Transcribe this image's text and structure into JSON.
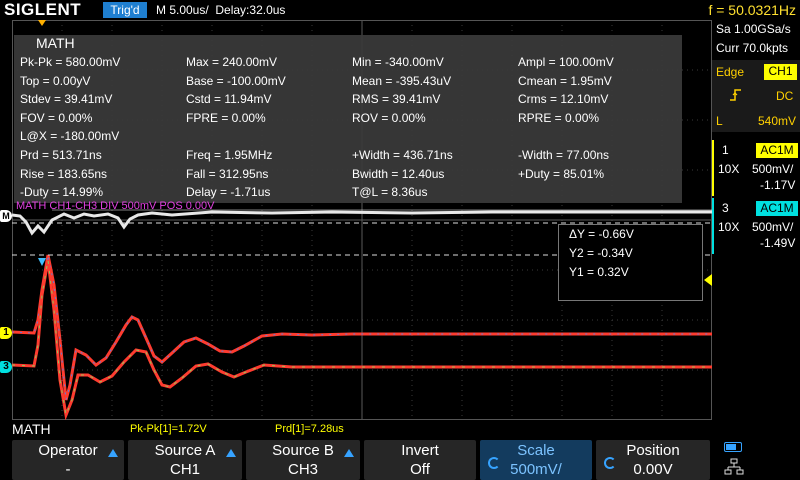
{
  "topbar": {
    "brand": "SIGLENT",
    "trigger_status": "Trig'd",
    "timebase": "M 5.00us/",
    "delay": "Delay:32.0us",
    "frequency": "f = 50.0321Hz"
  },
  "measure": {
    "title": "MATH",
    "rows": [
      [
        "Pk-Pk = 580.00mV",
        "Max = 240.00mV",
        "Min = -340.00mV",
        "Ampl = 100.00mV"
      ],
      [
        "Top = 0.00yV",
        "Base = -100.00mV",
        "Mean = -395.43uV",
        "Cmean = 1.95mV"
      ],
      [
        "Stdev = 39.41mV",
        "Cstd = 11.94mV",
        "RMS = 39.41mV",
        "Crms = 12.10mV"
      ],
      [
        "FOV = 0.00%",
        "FPRE = 0.00%",
        "ROV = 0.00%",
        "RPRE = 0.00%"
      ],
      [
        "L@X = -180.00mV",
        "",
        "",
        ""
      ],
      [
        "Prd = 513.71ns",
        "Freq = 1.95MHz",
        "+Width = 436.71ns",
        "-Width = 77.00ns"
      ],
      [
        "Rise = 183.65ns",
        "Fall = 312.95ns",
        "Bwidth = 12.40us",
        "+Duty = 85.01%"
      ],
      [
        "-Duty = 14.99%",
        "Delay = -1.71us",
        "T@L = 8.36us",
        ""
      ]
    ]
  },
  "math_trace_label": "MATH  CH1-CH3  DIV 500mV  POS 0.00V",
  "markers": {
    "ch1": "1",
    "ch3": "3",
    "math": "M"
  },
  "cursors": {
    "delta_y": "ΔY = -0.66V",
    "y2": "Y2 = -0.34V",
    "y1": "Y1 = 0.32V"
  },
  "right_panel": {
    "sample_rate": "Sa 1.00GSa/s",
    "memory": "Curr 70.0kpts",
    "trigger": {
      "type": "Edge",
      "source": "CH1",
      "coupling": "DC",
      "level_label": "L",
      "level": "540mV"
    },
    "ch1": {
      "number": "1",
      "coupling": "AC1M",
      "probe": "10X",
      "scale": "500mV/",
      "offset": "-1.17V"
    },
    "ch3": {
      "number": "3",
      "coupling": "AC1M",
      "probe": "10X",
      "scale": "500mV/",
      "offset": "-1.49V"
    }
  },
  "bottom_info": {
    "label": "MATH",
    "pkpk": "Pk-Pk[1]=1.72V",
    "prd": "Prd[1]=7.28us"
  },
  "menu": [
    {
      "label": "Operator",
      "value": "-"
    },
    {
      "label": "Source A",
      "value": "CH1"
    },
    {
      "label": "Source B",
      "value": "CH3"
    },
    {
      "label": "Invert",
      "value": "Off"
    },
    {
      "label": "Scale",
      "value": "500mV/"
    },
    {
      "label": "Position",
      "value": "0.00V"
    }
  ],
  "colors": {
    "ch1": "#ffff00",
    "ch3": "#ff3b2f",
    "math": "#e040e0",
    "accent": "#1f7fd0"
  }
}
